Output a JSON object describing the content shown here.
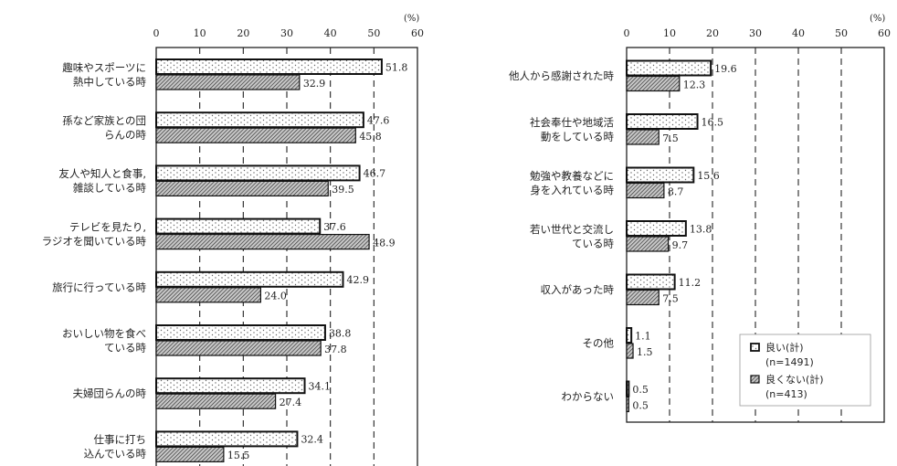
{
  "chart_data": [
    {
      "type": "bar",
      "orientation": "horizontal",
      "unit": "(%)",
      "xlim": [
        0,
        60
      ],
      "ticks": [
        "0",
        "10",
        "20",
        "30",
        "40",
        "50",
        "60"
      ],
      "categories": [
        [
          "趣味やスポーツに",
          "熱中している時"
        ],
        [
          "孫など家族との団",
          "らんの時"
        ],
        [
          "友人や知人と食事,",
          "雑談している時"
        ],
        [
          "テレビを見たり,",
          "ラジオを聞いている時"
        ],
        [
          "旅行に行っている時"
        ],
        [
          "おいしい物を食べ",
          "ている時"
        ],
        [
          "夫婦団らんの時"
        ],
        [
          "仕事に打ち",
          "込んでいる時"
        ]
      ],
      "series": [
        {
          "values": [
            51.8,
            47.6,
            46.7,
            37.6,
            42.9,
            38.8,
            34.1,
            32.4
          ],
          "labels": [
            "51.8",
            "47.6",
            "46.7",
            "37.6",
            "42.9",
            "38.8",
            "34.1",
            "32.4"
          ]
        },
        {
          "values": [
            32.9,
            45.8,
            39.5,
            48.9,
            24.0,
            37.8,
            27.4,
            15.5
          ],
          "labels": [
            "32.9",
            "45.8",
            "39.5",
            "48.9",
            "24.0",
            "37.8",
            "27.4",
            "15.5"
          ]
        }
      ]
    },
    {
      "type": "bar",
      "orientation": "horizontal",
      "unit": "(%)",
      "xlim": [
        0,
        60
      ],
      "ticks": [
        "0",
        "10",
        "20",
        "30",
        "40",
        "50",
        "60"
      ],
      "categories": [
        [
          "他人から感謝された時"
        ],
        [
          "社会奉仕や地域活",
          "動をしている時"
        ],
        [
          "勉強や教養などに",
          "身を入れている時"
        ],
        [
          "若い世代と交流し",
          "ている時"
        ],
        [
          "収入があった時"
        ],
        [
          "その他"
        ],
        [
          "わからない"
        ]
      ],
      "series": [
        {
          "values": [
            19.6,
            16.5,
            15.6,
            13.8,
            11.2,
            1.1,
            0.5
          ],
          "labels": [
            "19.6",
            "16.5",
            "15.6",
            "13.8",
            "11.2",
            "1.1",
            "0.5"
          ]
        },
        {
          "values": [
            12.3,
            7.5,
            8.7,
            9.7,
            7.5,
            1.5,
            0.5
          ],
          "labels": [
            "12.3",
            "7.5",
            "8.7",
            "9.7",
            "7.5",
            "1.5",
            "0.5"
          ]
        }
      ],
      "legend": {
        "position": "bottom-right",
        "entries": [
          {
            "line1": "良い(計)",
            "line2": "(n=1491)"
          },
          {
            "line1": "良くない(計)",
            "line2": "(n=413)"
          }
        ]
      }
    }
  ]
}
